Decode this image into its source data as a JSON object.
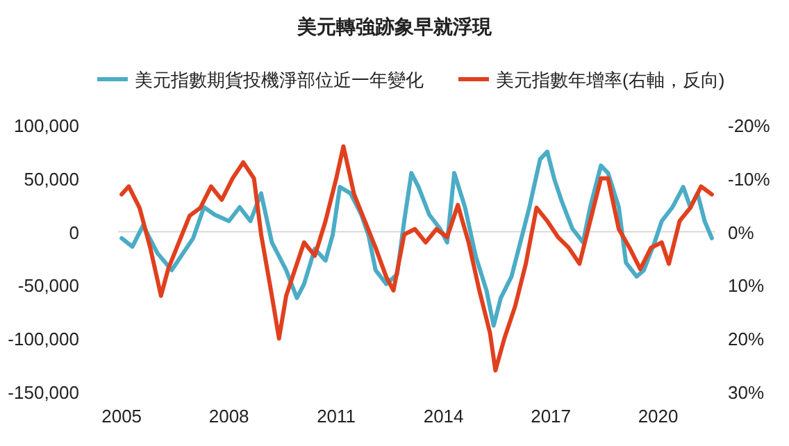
{
  "chart_data": {
    "type": "line",
    "title": "美元轉強跡象早就浮現",
    "legend": "top",
    "line_style": "solid",
    "marker": "none",
    "grid": false,
    "xlim": [
      2004.9,
      2021.6
    ],
    "xticks": [
      2005,
      2008,
      2011,
      2014,
      2017,
      2020
    ],
    "ylim": [
      -150000,
      100000
    ],
    "yticks": [
      {
        "value": -150000,
        "label": "-150,000"
      },
      {
        "value": -100000,
        "label": "-100,000"
      },
      {
        "value": -50000,
        "label": "-50,000"
      },
      {
        "value": 0,
        "label": "0"
      },
      {
        "value": 50000,
        "label": "50,000"
      },
      {
        "value": 100000,
        "label": "100,000"
      }
    ],
    "y2lim": [
      30,
      -20
    ],
    "y2ticks": [
      {
        "value": -20,
        "label": "-20%"
      },
      {
        "value": -10,
        "label": "-10%"
      },
      {
        "value": 0,
        "label": "0%"
      },
      {
        "value": 10,
        "label": "10%"
      },
      {
        "value": 20,
        "label": "20%"
      },
      {
        "value": 30,
        "label": "30%"
      }
    ],
    "ref_lines": [
      {
        "axis": "y",
        "value": 0,
        "color": "#d9d9d9"
      }
    ],
    "series": [
      {
        "name": "美元指數期貨投機淨部位近一年變化",
        "color": "#4bacc6",
        "x": [
          2005.0,
          2005.3,
          2005.6,
          2006.0,
          2006.4,
          2006.8,
          2007.0,
          2007.3,
          2007.6,
          2008.0,
          2008.3,
          2008.6,
          2008.9,
          2009.2,
          2009.6,
          2009.9,
          2010.1,
          2010.4,
          2010.7,
          2010.9,
          2011.1,
          2011.4,
          2011.7,
          2011.9,
          2012.1,
          2012.4,
          2012.7,
          2012.9,
          2013.1,
          2013.3,
          2013.6,
          2013.9,
          2014.1,
          2014.3,
          2014.6,
          2014.9,
          2015.2,
          2015.4,
          2015.6,
          2015.9,
          2016.1,
          2016.4,
          2016.7,
          2016.9,
          2017.1,
          2017.3,
          2017.6,
          2017.9,
          2018.1,
          2018.4,
          2018.6,
          2018.9,
          2019.1,
          2019.4,
          2019.6,
          2019.9,
          2020.1,
          2020.4,
          2020.7,
          2020.9,
          2021.1,
          2021.3,
          2021.5
        ],
        "values": [
          -6000,
          -14000,
          6000,
          -20000,
          -36000,
          -16000,
          -6000,
          23000,
          16000,
          10000,
          23000,
          10000,
          36000,
          -10000,
          -36000,
          -62000,
          -49000,
          -16000,
          -27000,
          -3000,
          42000,
          36000,
          16000,
          -3000,
          -36000,
          -49000,
          -40000,
          10000,
          55000,
          42000,
          16000,
          3000,
          -10000,
          55000,
          23000,
          -23000,
          -55000,
          -88000,
          -62000,
          -42000,
          -16000,
          23000,
          68000,
          75000,
          49000,
          29000,
          3000,
          -10000,
          23000,
          62000,
          55000,
          23000,
          -29000,
          -42000,
          -36000,
          -10000,
          10000,
          23000,
          42000,
          23000,
          36000,
          10000,
          -6000
        ]
      },
      {
        "name": "美元指數年增率(右軸，反向)",
        "color": "#e0401e",
        "axis": "y2",
        "x": [
          2005.0,
          2005.2,
          2005.5,
          2005.8,
          2006.1,
          2006.3,
          2006.6,
          2006.9,
          2007.2,
          2007.5,
          2007.8,
          2008.1,
          2008.4,
          2008.7,
          2008.9,
          2009.2,
          2009.4,
          2009.6,
          2009.9,
          2010.1,
          2010.4,
          2010.7,
          2011.0,
          2011.2,
          2011.5,
          2011.8,
          2012.1,
          2012.4,
          2012.6,
          2012.9,
          2013.2,
          2013.5,
          2013.8,
          2014.1,
          2014.4,
          2014.7,
          2015.0,
          2015.3,
          2015.45,
          2015.7,
          2016.0,
          2016.3,
          2016.6,
          2016.9,
          2017.2,
          2017.5,
          2017.8,
          2018.1,
          2018.4,
          2018.6,
          2018.9,
          2019.2,
          2019.5,
          2019.8,
          2020.1,
          2020.3,
          2020.6,
          2020.9,
          2021.2,
          2021.5
        ],
        "values": [
          -7,
          -8.5,
          -4.5,
          3,
          12,
          7,
          2,
          -3,
          -4.5,
          -8.5,
          -6,
          -10,
          -13,
          -10,
          0.5,
          12,
          20,
          12,
          6,
          2,
          4.5,
          -2,
          -10,
          -16,
          -7,
          -2,
          3,
          8.5,
          11,
          0.5,
          -0.5,
          2,
          -0.5,
          1,
          -5,
          2,
          11,
          19,
          26,
          20,
          14,
          6,
          -4.5,
          -2,
          1,
          3,
          6,
          -2,
          -10,
          -10,
          -0.5,
          3,
          7,
          3,
          2,
          6,
          -2,
          -4.5,
          -8.5,
          -7
        ]
      }
    ]
  }
}
